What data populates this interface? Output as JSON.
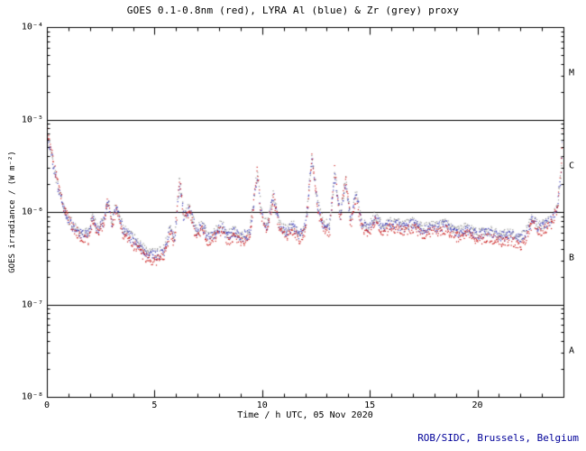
{
  "credit": "ROB/SIDC, Brussels, Belgium",
  "colors": {
    "goes_red": "#cc2222",
    "lyra_al_blue": "#4040bb",
    "lyra_zr_grey": "#9a9a9a",
    "credit_navy": "#000099",
    "axis_black": "#000000",
    "background": "#ffffff"
  },
  "chart_data": {
    "type": "scatter",
    "title": "GOES 0.1-0.8nm (red), LYRA Al (blue) & Zr (grey) proxy",
    "xlabel": "Time / h UTC, 05 Nov 2020",
    "ylabel": "GOES irradiance / (W m⁻²)",
    "x_axis": {
      "min": 0,
      "max": 24,
      "major_ticks": [
        0,
        5,
        10,
        15,
        20
      ],
      "major_tick_labels": [
        "0",
        "5",
        "10",
        "15",
        "20"
      ],
      "minor_tick_step": 1
    },
    "y_axis": {
      "scale": "log",
      "min": 1e-08,
      "max": 0.0001,
      "tick_exponents": [
        -4,
        -5,
        -6,
        -7,
        -8
      ],
      "tick_labels": [
        "10⁻⁴",
        "10⁻⁵",
        "10⁻⁶",
        "10⁻⁷",
        "10⁻⁸"
      ]
    },
    "hlines": [
      1e-05,
      1e-06,
      1e-07
    ],
    "flare_classes": [
      {
        "label": "M",
        "mid_exponent": -4.5
      },
      {
        "label": "C",
        "mid_exponent": -5.5
      },
      {
        "label": "B",
        "mid_exponent": -6.5
      },
      {
        "label": "A",
        "mid_exponent": -7.5
      }
    ],
    "series": [
      {
        "name": "GOES 0.1-0.8nm",
        "color_key": "goes_red",
        "style": "dots",
        "anchors": [
          [
            0,
            7.5e-06
          ],
          [
            0.15,
            5.5e-06
          ],
          [
            0.3,
            3.5e-06
          ],
          [
            0.5,
            2e-06
          ],
          [
            0.7,
            1.3e-06
          ],
          [
            1,
            8e-07
          ],
          [
            1.5,
            5.5e-07
          ],
          [
            1.9,
            5e-07
          ],
          [
            2.1,
            8.5e-07
          ],
          [
            2.3,
            6e-07
          ],
          [
            2.6,
            7e-07
          ],
          [
            2.8,
            1.4e-06
          ],
          [
            3,
            7e-07
          ],
          [
            3.2,
            1.1e-06
          ],
          [
            3.5,
            6e-07
          ],
          [
            3.8,
            5e-07
          ],
          [
            4.2,
            4e-07
          ],
          [
            4.6,
            3.2e-07
          ],
          [
            5,
            3e-07
          ],
          [
            5.4,
            3.3e-07
          ],
          [
            5.7,
            6e-07
          ],
          [
            5.9,
            4.5e-07
          ],
          [
            6.15,
            2.3e-06
          ],
          [
            6.35,
            8e-07
          ],
          [
            6.6,
            1.05e-06
          ],
          [
            6.9,
            5.5e-07
          ],
          [
            7.2,
            6.5e-07
          ],
          [
            7.5,
            4.5e-07
          ],
          [
            7.8,
            5.5e-07
          ],
          [
            8.1,
            6.5e-07
          ],
          [
            8.4,
            4.8e-07
          ],
          [
            8.7,
            5.5e-07
          ],
          [
            9,
            4.8e-07
          ],
          [
            9.4,
            5.2e-07
          ],
          [
            9.75,
            2.9e-06
          ],
          [
            9.95,
            9e-07
          ],
          [
            10.2,
            6e-07
          ],
          [
            10.5,
            1.45e-06
          ],
          [
            10.8,
            6.5e-07
          ],
          [
            11.1,
            5.5e-07
          ],
          [
            11.4,
            6.5e-07
          ],
          [
            11.7,
            5e-07
          ],
          [
            12,
            6.5e-07
          ],
          [
            12.3,
            4.2e-06
          ],
          [
            12.55,
            1.1e-06
          ],
          [
            12.8,
            7e-07
          ],
          [
            13.1,
            6e-07
          ],
          [
            13.35,
            2.9e-06
          ],
          [
            13.6,
            8e-07
          ],
          [
            13.85,
            2.4e-06
          ],
          [
            14.1,
            7.5e-07
          ],
          [
            14.35,
            1.5e-06
          ],
          [
            14.6,
            7e-07
          ],
          [
            14.9,
            6e-07
          ],
          [
            15.2,
            8e-07
          ],
          [
            15.6,
            6e-07
          ],
          [
            16,
            7e-07
          ],
          [
            16.5,
            6.2e-07
          ],
          [
            17,
            6.8e-07
          ],
          [
            17.5,
            5.8e-07
          ],
          [
            18,
            6.2e-07
          ],
          [
            18.5,
            6.6e-07
          ],
          [
            19,
            5.4e-07
          ],
          [
            19.5,
            5.8e-07
          ],
          [
            20,
            5e-07
          ],
          [
            20.5,
            5.4e-07
          ],
          [
            21,
            4.8e-07
          ],
          [
            21.5,
            5e-07
          ],
          [
            22,
            4.4e-07
          ],
          [
            22.3,
            5.5e-07
          ],
          [
            22.55,
            8e-07
          ],
          [
            22.8,
            6e-07
          ],
          [
            23.1,
            6.5e-07
          ],
          [
            23.4,
            7.5e-07
          ],
          [
            23.7,
            1.1e-06
          ],
          [
            23.85,
            2.6e-06
          ],
          [
            24,
            1.05e-05
          ]
        ]
      },
      {
        "name": "LYRA Al proxy",
        "color_key": "lyra_al_blue",
        "style": "dots",
        "anchors": [
          [
            0,
            6e-06
          ],
          [
            0.15,
            4.6e-06
          ],
          [
            0.3,
            3e-06
          ],
          [
            0.5,
            1.8e-06
          ],
          [
            0.7,
            1.2e-06
          ],
          [
            1,
            7.8e-07
          ],
          [
            1.5,
            6e-07
          ],
          [
            1.9,
            5.6e-07
          ],
          [
            2.1,
            9e-07
          ],
          [
            2.3,
            6.6e-07
          ],
          [
            2.6,
            7.6e-07
          ],
          [
            2.8,
            1.3e-06
          ],
          [
            3,
            7.7e-07
          ],
          [
            3.2,
            1.15e-06
          ],
          [
            3.5,
            6.6e-07
          ],
          [
            3.8,
            5.6e-07
          ],
          [
            4.2,
            4.5e-07
          ],
          [
            4.6,
            3.6e-07
          ],
          [
            5,
            3.4e-07
          ],
          [
            5.4,
            3.7e-07
          ],
          [
            5.7,
            6.5e-07
          ],
          [
            5.9,
            5e-07
          ],
          [
            6.15,
            2.1e-06
          ],
          [
            6.35,
            8.6e-07
          ],
          [
            6.6,
            1.1e-06
          ],
          [
            6.9,
            6.1e-07
          ],
          [
            7.2,
            7.1e-07
          ],
          [
            7.5,
            5.1e-07
          ],
          [
            7.8,
            6.1e-07
          ],
          [
            8.1,
            7.1e-07
          ],
          [
            8.4,
            5.4e-07
          ],
          [
            8.7,
            6.1e-07
          ],
          [
            9,
            5.4e-07
          ],
          [
            9.4,
            5.8e-07
          ],
          [
            9.75,
            2.6e-06
          ],
          [
            9.95,
            9.5e-07
          ],
          [
            10.2,
            6.7e-07
          ],
          [
            10.5,
            1.5e-06
          ],
          [
            10.8,
            7.1e-07
          ],
          [
            11.1,
            6.1e-07
          ],
          [
            11.4,
            7.1e-07
          ],
          [
            11.7,
            5.6e-07
          ],
          [
            12,
            7.1e-07
          ],
          [
            12.3,
            3.9e-06
          ],
          [
            12.55,
            1.2e-06
          ],
          [
            12.8,
            7.7e-07
          ],
          [
            13.1,
            6.7e-07
          ],
          [
            13.35,
            2.6e-06
          ],
          [
            13.6,
            8.7e-07
          ],
          [
            13.85,
            2.2e-06
          ],
          [
            14.1,
            8.3e-07
          ],
          [
            14.35,
            1.6e-06
          ],
          [
            14.6,
            7.7e-07
          ],
          [
            14.9,
            6.7e-07
          ],
          [
            15.2,
            8.7e-07
          ],
          [
            15.6,
            6.7e-07
          ],
          [
            16,
            7.7e-07
          ],
          [
            16.5,
            6.9e-07
          ],
          [
            17,
            7.5e-07
          ],
          [
            17.5,
            6.5e-07
          ],
          [
            18,
            6.9e-07
          ],
          [
            18.5,
            7.3e-07
          ],
          [
            19,
            6.1e-07
          ],
          [
            19.5,
            6.5e-07
          ],
          [
            20,
            5.7e-07
          ],
          [
            20.5,
            6.1e-07
          ],
          [
            21,
            5.4e-07
          ],
          [
            21.5,
            5.7e-07
          ],
          [
            22,
            5.1e-07
          ],
          [
            22.3,
            6.2e-07
          ],
          [
            22.55,
            8.7e-07
          ],
          [
            22.8,
            6.7e-07
          ],
          [
            23.1,
            7.2e-07
          ],
          [
            23.4,
            8.2e-07
          ],
          [
            23.7,
            1.2e-06
          ],
          [
            23.85,
            2.4e-06
          ],
          [
            24,
            9e-06
          ]
        ]
      },
      {
        "name": "LYRA Zr proxy",
        "color_key": "lyra_zr_grey",
        "style": "dots",
        "derived_from": "LYRA Al proxy",
        "ratio": 1.05
      }
    ]
  }
}
